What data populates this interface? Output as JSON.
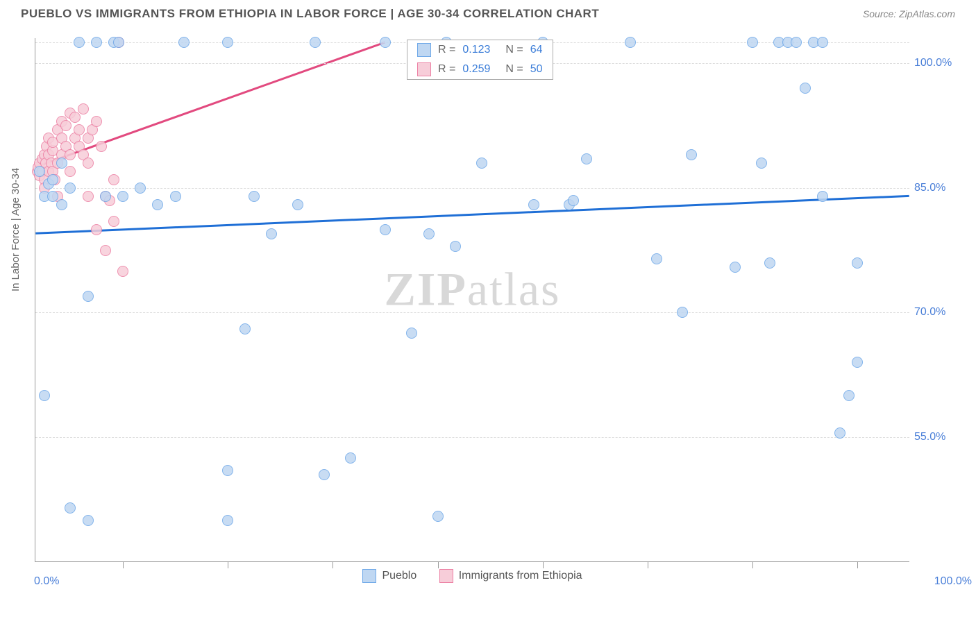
{
  "title": "PUEBLO VS IMMIGRANTS FROM ETHIOPIA IN LABOR FORCE | AGE 30-34 CORRELATION CHART",
  "source": "Source: ZipAtlas.com",
  "yaxis_label": "In Labor Force | Age 30-34",
  "watermark_bold": "ZIP",
  "watermark_light": "atlas",
  "chart": {
    "type": "scatter-correlation",
    "xlim": [
      0,
      100
    ],
    "ylim": [
      40,
      103
    ],
    "x_start_label": "0.0%",
    "x_end_label": "100.0%",
    "x_tick_positions": [
      10,
      22,
      34,
      46,
      58,
      70,
      82,
      94
    ],
    "y_gridlines": [
      55,
      70,
      85,
      100,
      102.5
    ],
    "y_tick_labels": {
      "55": "55.0%",
      "70": "70.0%",
      "85": "85.0%",
      "100": "100.0%"
    },
    "background_color": "#ffffff",
    "grid_color": "#dddddd"
  },
  "series": {
    "pueblo": {
      "label": "Pueblo",
      "R": "0.123",
      "N": "64",
      "fill": "#bfd7f2",
      "stroke": "#6ea8e8",
      "line_color": "#1f6fd6",
      "regression": {
        "x1": 0,
        "y1": 79.5,
        "x2": 100,
        "y2": 84
      },
      "points": [
        [
          0.5,
          87
        ],
        [
          1,
          84
        ],
        [
          1.5,
          85.5
        ],
        [
          2,
          84
        ],
        [
          2,
          86
        ],
        [
          3,
          88
        ],
        [
          3,
          83
        ],
        [
          4,
          85
        ],
        [
          5,
          102.5
        ],
        [
          6,
          72
        ],
        [
          7,
          102.5
        ],
        [
          8,
          84
        ],
        [
          9,
          102.5
        ],
        [
          9.5,
          102.5
        ],
        [
          10,
          84
        ],
        [
          1,
          60
        ],
        [
          4,
          46.5
        ],
        [
          6,
          45
        ],
        [
          12,
          85
        ],
        [
          14,
          83
        ],
        [
          16,
          84
        ],
        [
          17,
          102.5
        ],
        [
          22,
          102.5
        ],
        [
          24,
          68
        ],
        [
          25,
          84
        ],
        [
          22,
          45
        ],
        [
          22,
          51
        ],
        [
          27,
          79.5
        ],
        [
          30,
          83
        ],
        [
          32,
          102.5
        ],
        [
          33,
          50.5
        ],
        [
          36,
          52.5
        ],
        [
          40,
          80
        ],
        [
          40,
          102.5
        ],
        [
          43,
          67.5
        ],
        [
          45,
          79.5
        ],
        [
          46,
          45.5
        ],
        [
          47,
          102.5
        ],
        [
          48,
          78
        ],
        [
          51,
          88
        ],
        [
          57,
          83
        ],
        [
          58,
          102.5
        ],
        [
          61,
          83
        ],
        [
          61.5,
          83.5
        ],
        [
          63,
          88.5
        ],
        [
          68,
          102.5
        ],
        [
          71,
          76.5
        ],
        [
          74,
          70
        ],
        [
          75,
          89
        ],
        [
          80,
          75.5
        ],
        [
          82,
          102.5
        ],
        [
          83,
          88
        ],
        [
          84,
          76
        ],
        [
          85,
          102.5
        ],
        [
          86,
          102.5
        ],
        [
          87,
          102.5
        ],
        [
          89,
          102.5
        ],
        [
          88,
          97
        ],
        [
          90,
          102.5
        ],
        [
          90,
          84
        ],
        [
          92,
          55.5
        ],
        [
          93,
          60
        ],
        [
          94,
          64
        ],
        [
          94,
          76
        ]
      ]
    },
    "ethiopia": {
      "label": "Immigrants from Ethiopia",
      "R": "0.259",
      "N": "50",
      "fill": "#f7cdd9",
      "stroke": "#ec7fa3",
      "line_color": "#e24a7f",
      "regression": {
        "x1": 0,
        "y1": 87.5,
        "x2": 40,
        "y2": 102.5
      },
      "points": [
        [
          0.2,
          87
        ],
        [
          0.3,
          87.5
        ],
        [
          0.5,
          88
        ],
        [
          0.5,
          86.5
        ],
        [
          0.8,
          87
        ],
        [
          0.8,
          88.5
        ],
        [
          1,
          89
        ],
        [
          1,
          86
        ],
        [
          1,
          85
        ],
        [
          1.2,
          88
        ],
        [
          1.3,
          90
        ],
        [
          1.5,
          87
        ],
        [
          1.5,
          89
        ],
        [
          1.5,
          91
        ],
        [
          1.8,
          88
        ],
        [
          2,
          89.5
        ],
        [
          2,
          90.5
        ],
        [
          2,
          87
        ],
        [
          2.2,
          86
        ],
        [
          2.5,
          92
        ],
        [
          2.5,
          88
        ],
        [
          2.5,
          84
        ],
        [
          3,
          91
        ],
        [
          3,
          89
        ],
        [
          3,
          93
        ],
        [
          3.5,
          90
        ],
        [
          3.5,
          92.5
        ],
        [
          4,
          89
        ],
        [
          4,
          94
        ],
        [
          4,
          87
        ],
        [
          4.5,
          91
        ],
        [
          4.5,
          93.5
        ],
        [
          5,
          90
        ],
        [
          5,
          92
        ],
        [
          5.5,
          89
        ],
        [
          5.5,
          94.5
        ],
        [
          6,
          91
        ],
        [
          6,
          88
        ],
        [
          6,
          84
        ],
        [
          6.5,
          92
        ],
        [
          7,
          93
        ],
        [
          7,
          80
        ],
        [
          7.5,
          90
        ],
        [
          8,
          84
        ],
        [
          8,
          77.5
        ],
        [
          8.5,
          83.5
        ],
        [
          9,
          81
        ],
        [
          9,
          86
        ],
        [
          9.5,
          102.5
        ],
        [
          10,
          75
        ]
      ]
    }
  },
  "legend_top_labels": {
    "R": "R =",
    "N": "N ="
  }
}
